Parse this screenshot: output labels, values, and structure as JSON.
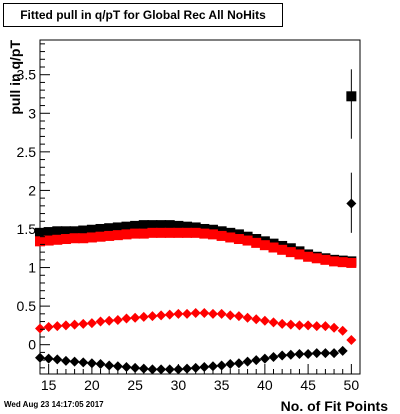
{
  "title": "Fitted pull in q/pT for Global Rec All NoHits",
  "timestamp": "Wed Aug 23 14:17:05 2017",
  "chart_data": {
    "type": "scatter",
    "title": "Fitted pull in q/pT for Global Rec All NoHits",
    "xlabel": "No. of Fit Points",
    "ylabel": "pull in q/pT",
    "xlim": [
      14,
      51
    ],
    "ylim": [
      -0.38,
      3.95
    ],
    "x_ticks": [
      15,
      20,
      25,
      30,
      35,
      40,
      45,
      50
    ],
    "y_ticks": [
      0,
      0.5,
      1,
      1.5,
      2,
      2.5,
      3,
      3.5
    ],
    "x_tick_labels": [
      "15",
      "20",
      "25",
      "30",
      "35",
      "40",
      "45",
      "50"
    ],
    "y_tick_labels": [
      "0",
      "0.5",
      "1",
      "1.5",
      "2",
      "2.5",
      "3",
      "3.5"
    ],
    "grid": false,
    "legend": "none",
    "series": [
      {
        "marker": "square",
        "color": "#000000",
        "x": [
          14,
          15,
          16,
          17,
          18,
          19,
          20,
          21,
          22,
          23,
          24,
          25,
          26,
          27,
          28,
          29,
          30,
          31,
          32,
          33,
          34,
          35,
          36,
          37,
          38,
          39,
          40,
          41,
          42,
          43,
          44,
          45,
          46,
          47,
          48,
          49,
          50
        ],
        "y": [
          1.45,
          1.46,
          1.47,
          1.47,
          1.47,
          1.48,
          1.49,
          1.5,
          1.51,
          1.52,
          1.53,
          1.54,
          1.55,
          1.55,
          1.55,
          1.55,
          1.54,
          1.53,
          1.52,
          1.5,
          1.49,
          1.47,
          1.45,
          1.43,
          1.4,
          1.37,
          1.34,
          1.31,
          1.28,
          1.25,
          1.21,
          1.17,
          1.14,
          1.12,
          1.1,
          1.09,
          1.08
        ]
      },
      {
        "marker": "square",
        "color": "#ff0000",
        "x": [
          14,
          15,
          16,
          17,
          18,
          19,
          20,
          21,
          22,
          23,
          24,
          25,
          26,
          27,
          28,
          29,
          30,
          31,
          32,
          33,
          34,
          35,
          36,
          37,
          38,
          39,
          40,
          41,
          42,
          43,
          44,
          45,
          46,
          47,
          48,
          49,
          50
        ],
        "y": [
          1.34,
          1.35,
          1.36,
          1.37,
          1.38,
          1.38,
          1.39,
          1.4,
          1.41,
          1.42,
          1.43,
          1.44,
          1.44,
          1.45,
          1.45,
          1.45,
          1.45,
          1.45,
          1.45,
          1.44,
          1.43,
          1.41,
          1.39,
          1.37,
          1.35,
          1.32,
          1.29,
          1.26,
          1.23,
          1.2,
          1.17,
          1.14,
          1.12,
          1.1,
          1.08,
          1.07,
          1.06
        ]
      },
      {
        "marker": "diamond",
        "color": "#ff0000",
        "x": [
          14,
          15,
          16,
          17,
          18,
          19,
          20,
          21,
          22,
          23,
          24,
          25,
          26,
          27,
          28,
          29,
          30,
          31,
          32,
          33,
          34,
          35,
          36,
          37,
          38,
          39,
          40,
          41,
          42,
          43,
          44,
          45,
          46,
          47,
          48,
          49,
          50
        ],
        "y": [
          0.21,
          0.23,
          0.24,
          0.25,
          0.26,
          0.27,
          0.28,
          0.3,
          0.31,
          0.32,
          0.34,
          0.35,
          0.36,
          0.37,
          0.38,
          0.39,
          0.4,
          0.4,
          0.41,
          0.41,
          0.4,
          0.4,
          0.38,
          0.37,
          0.35,
          0.33,
          0.31,
          0.29,
          0.27,
          0.26,
          0.25,
          0.25,
          0.24,
          0.24,
          0.22,
          0.18,
          0.06
        ]
      },
      {
        "marker": "diamond",
        "color": "#000000",
        "x": [
          14,
          15,
          16,
          17,
          18,
          19,
          20,
          21,
          22,
          23,
          24,
          25,
          26,
          27,
          28,
          29,
          30,
          31,
          32,
          33,
          34,
          35,
          36,
          37,
          38,
          39,
          40,
          41,
          42,
          43,
          44,
          45,
          46,
          47,
          48,
          49
        ],
        "y": [
          -0.17,
          -0.18,
          -0.19,
          -0.21,
          -0.22,
          -0.23,
          -0.24,
          -0.25,
          -0.27,
          -0.28,
          -0.29,
          -0.3,
          -0.31,
          -0.32,
          -0.32,
          -0.32,
          -0.32,
          -0.31,
          -0.3,
          -0.29,
          -0.28,
          -0.27,
          -0.25,
          -0.24,
          -0.22,
          -0.2,
          -0.18,
          -0.16,
          -0.14,
          -0.13,
          -0.12,
          -0.12,
          -0.11,
          -0.11,
          -0.11,
          -0.08
        ]
      },
      {
        "marker": "square",
        "color": "#000000",
        "x": [
          50
        ],
        "y": [
          3.22
        ],
        "yerr_low": [
          0.55
        ],
        "yerr_high": [
          0.35
        ]
      },
      {
        "marker": "diamond",
        "color": "#000000",
        "x": [
          50
        ],
        "y": [
          1.83
        ],
        "yerr_low": [
          0.38
        ],
        "yerr_high": [
          0.4
        ]
      }
    ]
  }
}
